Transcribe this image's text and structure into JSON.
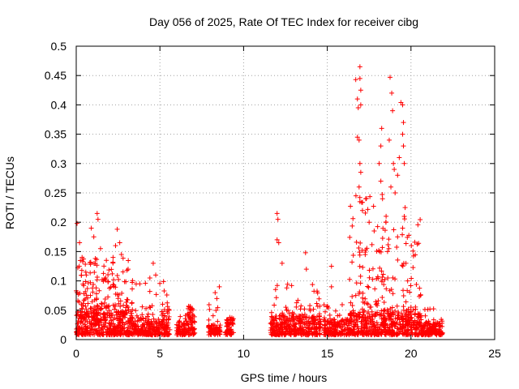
{
  "chart_data": {
    "type": "scatter",
    "title": "Day 056 of 2025, Rate Of TEC Index for receiver cibg",
    "xlabel": "GPS time / hours",
    "ylabel": "ROTI / TECUs",
    "xlim": [
      0,
      25
    ],
    "ylim": [
      0,
      0.5
    ],
    "x_ticks": [
      0,
      5,
      10,
      15,
      20,
      25
    ],
    "x_tick_labels": [
      "0",
      "5",
      "10",
      "15",
      "20",
      "25"
    ],
    "y_ticks": [
      0,
      0.05,
      0.1,
      0.15,
      0.2,
      0.25,
      0.3,
      0.35,
      0.4,
      0.45,
      0.5
    ],
    "y_tick_labels": [
      "0",
      "0.05",
      "0.1",
      "0.15",
      "0.2",
      "0.25",
      "0.3",
      "0.35",
      "0.4",
      "0.45",
      "0.5"
    ],
    "grid": true,
    "marker": "+",
    "color": "#ff0000",
    "series": [
      {
        "name": "ROTI",
        "segments": [
          {
            "x_start": 0.0,
            "x_end": 3.4,
            "base_min": 0.008,
            "base_max": 0.045,
            "burst_count": 170,
            "burst_max": 0.14
          },
          {
            "x_start": 3.4,
            "x_end": 5.6,
            "base_min": 0.008,
            "base_max": 0.035,
            "burst_count": 40,
            "burst_max": 0.1
          },
          {
            "x_start": 6.0,
            "x_end": 6.6,
            "base_min": 0.008,
            "base_max": 0.03,
            "burst_count": 6,
            "burst_max": 0.045
          },
          {
            "x_start": 6.6,
            "x_end": 7.1,
            "base_min": 0.008,
            "base_max": 0.05,
            "burst_count": 10,
            "burst_max": 0.06
          },
          {
            "x_start": 7.9,
            "x_end": 8.6,
            "base_min": 0.008,
            "base_max": 0.025,
            "burst_count": 8,
            "burst_max": 0.07
          },
          {
            "x_start": 8.9,
            "x_end": 9.4,
            "base_min": 0.008,
            "base_max": 0.035,
            "burst_count": 4,
            "burst_max": 0.04
          },
          {
            "x_start": 11.6,
            "x_end": 14.6,
            "base_min": 0.008,
            "base_max": 0.04,
            "burst_count": 45,
            "burst_max": 0.1
          },
          {
            "x_start": 14.8,
            "x_end": 16.3,
            "base_min": 0.008,
            "base_max": 0.035,
            "burst_count": 12,
            "burst_max": 0.06
          },
          {
            "x_start": 16.3,
            "x_end": 20.6,
            "base_min": 0.008,
            "base_max": 0.05,
            "burst_count": 140,
            "burst_max": 0.25
          },
          {
            "x_start": 20.6,
            "x_end": 21.9,
            "base_min": 0.008,
            "base_max": 0.03,
            "burst_count": 10,
            "burst_max": 0.055
          }
        ],
        "points": [
          [
            0.05,
            0.198
          ],
          [
            0.2,
            0.165
          ],
          [
            0.35,
            0.14
          ],
          [
            0.6,
            0.11
          ],
          [
            0.9,
            0.19
          ],
          [
            1.05,
            0.175
          ],
          [
            1.25,
            0.215
          ],
          [
            1.3,
            0.205
          ],
          [
            1.45,
            0.155
          ],
          [
            1.8,
            0.135
          ],
          [
            2.2,
            0.14
          ],
          [
            2.35,
            0.16
          ],
          [
            2.45,
            0.188
          ],
          [
            2.6,
            0.165
          ],
          [
            2.7,
            0.145
          ],
          [
            3.1,
            0.12
          ],
          [
            3.8,
            0.095
          ],
          [
            4.4,
            0.105
          ],
          [
            4.6,
            0.13
          ],
          [
            4.75,
            0.11
          ],
          [
            8.3,
            0.08
          ],
          [
            8.55,
            0.09
          ],
          [
            8.4,
            0.07
          ],
          [
            12.0,
            0.215
          ],
          [
            12.05,
            0.205
          ],
          [
            12.0,
            0.17
          ],
          [
            12.1,
            0.165
          ],
          [
            12.3,
            0.13
          ],
          [
            13.7,
            0.148
          ],
          [
            13.75,
            0.12
          ],
          [
            15.25,
            0.125
          ],
          [
            15.25,
            0.09
          ],
          [
            16.7,
            0.443
          ],
          [
            16.8,
            0.41
          ],
          [
            16.85,
            0.395
          ],
          [
            16.95,
            0.465
          ],
          [
            16.95,
            0.445
          ],
          [
            17.0,
            0.425
          ],
          [
            17.0,
            0.4
          ],
          [
            16.8,
            0.345
          ],
          [
            16.9,
            0.34
          ],
          [
            16.95,
            0.3
          ],
          [
            17.0,
            0.285
          ],
          [
            16.95,
            0.235
          ],
          [
            17.1,
            0.22
          ],
          [
            17.3,
            0.24
          ],
          [
            16.9,
            0.26
          ],
          [
            17.5,
            0.2
          ],
          [
            17.8,
            0.185
          ],
          [
            18.1,
            0.3
          ],
          [
            18.2,
            0.33
          ],
          [
            18.25,
            0.36
          ],
          [
            18.2,
            0.27
          ],
          [
            18.3,
            0.24
          ],
          [
            18.5,
            0.2
          ],
          [
            18.6,
            0.15
          ],
          [
            18.75,
            0.447
          ],
          [
            18.85,
            0.42
          ],
          [
            18.9,
            0.39
          ],
          [
            18.95,
            0.3
          ],
          [
            19.0,
            0.29
          ],
          [
            19.05,
            0.25
          ],
          [
            18.7,
            0.34
          ],
          [
            18.8,
            0.26
          ],
          [
            19.2,
            0.28
          ],
          [
            19.3,
            0.31
          ],
          [
            19.4,
            0.404
          ],
          [
            19.5,
            0.4
          ],
          [
            19.55,
            0.37
          ],
          [
            19.5,
            0.35
          ],
          [
            19.55,
            0.33
          ],
          [
            19.6,
            0.3
          ],
          [
            19.65,
            0.225
          ],
          [
            19.6,
            0.21
          ],
          [
            19.5,
            0.19
          ],
          [
            19.2,
            0.175
          ],
          [
            19.7,
            0.13
          ],
          [
            19.8,
            0.1
          ]
        ]
      }
    ]
  }
}
